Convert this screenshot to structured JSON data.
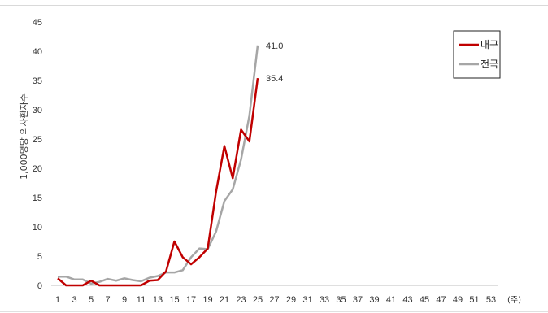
{
  "chart_data": {
    "type": "line",
    "title": "",
    "xlabel": "",
    "ylabel": "1,000명당 의사환자수",
    "x_unit": "(주)",
    "x": [
      1,
      2,
      3,
      4,
      5,
      6,
      7,
      8,
      9,
      10,
      11,
      12,
      13,
      14,
      15,
      16,
      17,
      18,
      19,
      20,
      21,
      22,
      23,
      24,
      25
    ],
    "x_ticks": [
      1,
      3,
      5,
      7,
      9,
      11,
      13,
      15,
      17,
      19,
      21,
      23,
      25,
      27,
      29,
      31,
      33,
      35,
      37,
      39,
      41,
      43,
      45,
      47,
      49,
      51,
      53
    ],
    "xlim": [
      1,
      53
    ],
    "ylim": [
      0,
      45
    ],
    "y_ticks": [
      0,
      5,
      10,
      15,
      20,
      25,
      30,
      35,
      40,
      45
    ],
    "grid": false,
    "legend_position": "top-right",
    "series": [
      {
        "name": "대구",
        "color": "#c00000",
        "values": [
          1.2,
          0.0,
          0.0,
          0.0,
          0.8,
          0.0,
          0.0,
          0.0,
          0.0,
          0.0,
          0.0,
          0.8,
          0.9,
          2.4,
          7.5,
          4.8,
          3.6,
          4.8,
          6.3,
          16.0,
          23.8,
          18.3,
          26.6,
          24.6,
          35.4
        ],
        "end_label": "35.4"
      },
      {
        "name": "전국",
        "color": "#a6a6a6",
        "values": [
          1.5,
          1.5,
          1.0,
          1.0,
          0.3,
          0.6,
          1.1,
          0.8,
          1.2,
          0.9,
          0.7,
          1.3,
          1.6,
          2.2,
          2.2,
          2.6,
          4.8,
          6.3,
          6.2,
          9.2,
          14.4,
          16.4,
          21.5,
          29.0,
          41.0
        ],
        "end_label": "41.0"
      }
    ]
  }
}
